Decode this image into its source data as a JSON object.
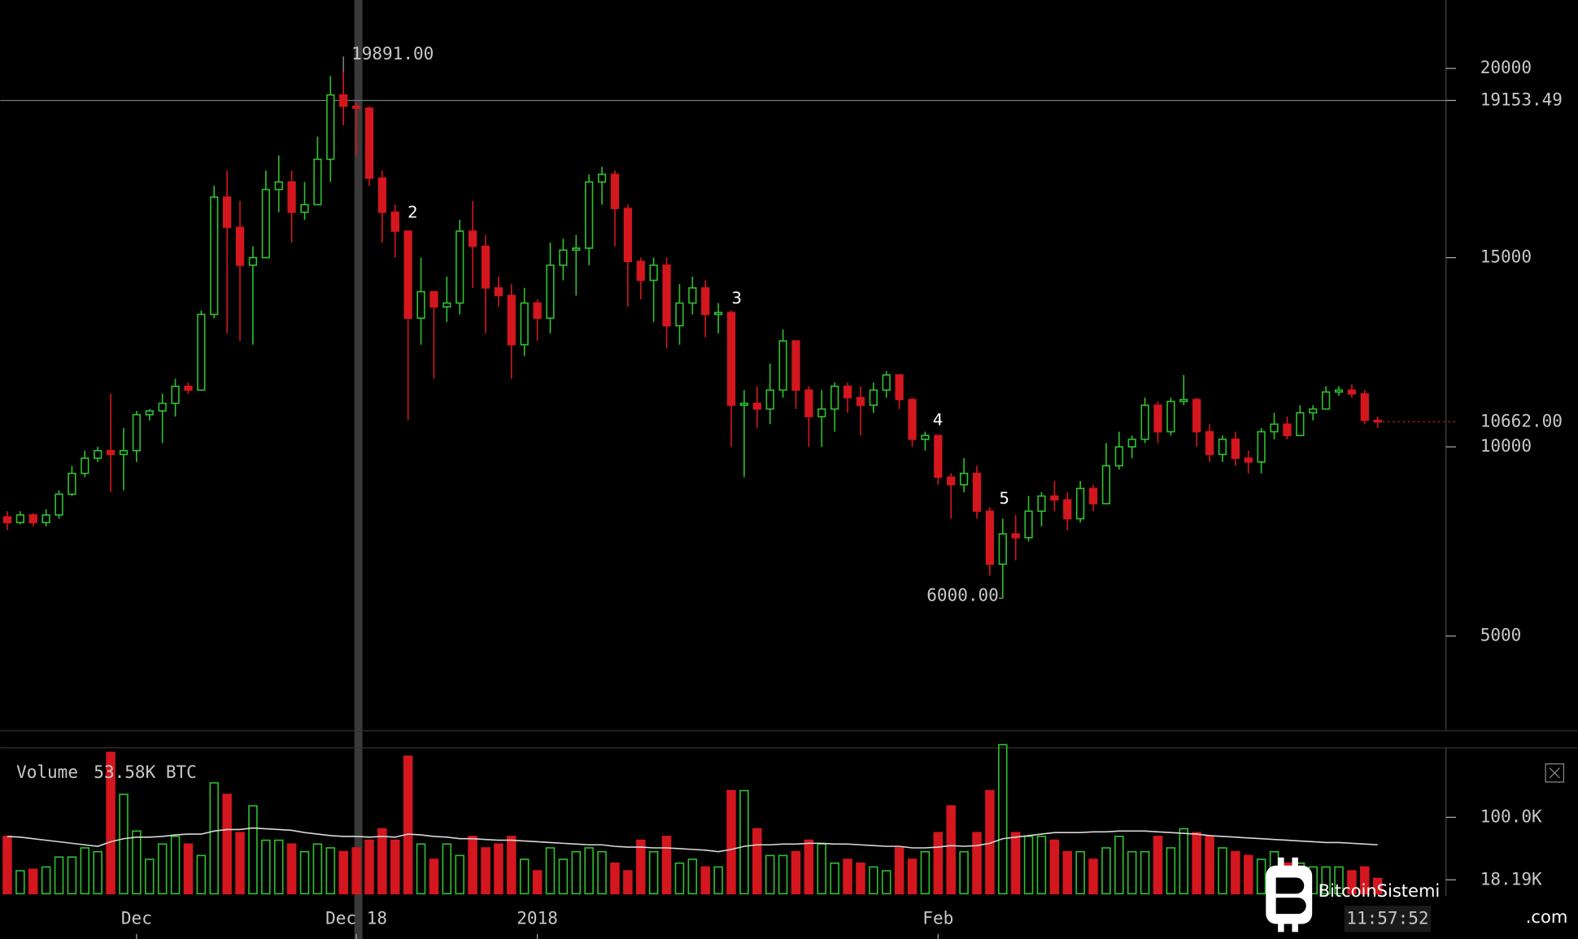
{
  "chart_data": {
    "type": "candlestick",
    "up_color": "#2fc02f",
    "down_color": "#d4161e",
    "categories": [
      null,
      null,
      null,
      null,
      null,
      null,
      null,
      null,
      null,
      null,
      "Dec",
      null,
      null,
      null,
      null,
      null,
      null,
      null,
      null,
      null,
      null,
      null,
      null,
      null,
      null,
      null,
      null,
      "Dec 18",
      null,
      null,
      null,
      null,
      null,
      null,
      null,
      null,
      null,
      null,
      null,
      null,
      null,
      "2018",
      null,
      null,
      null,
      null,
      null,
      null,
      null,
      null,
      null,
      null,
      null,
      null,
      null,
      null,
      null,
      null,
      null,
      null,
      null,
      null,
      null,
      null,
      null,
      null,
      null,
      null,
      null,
      null,
      null,
      null,
      "Feb",
      null,
      null,
      null,
      null,
      null,
      null,
      null,
      null,
      null,
      null,
      null,
      null,
      null,
      null,
      null,
      null,
      null,
      null,
      null,
      null,
      null,
      null,
      null,
      null,
      null,
      null,
      null,
      null,
      null,
      null,
      null,
      null,
      null,
      null
    ],
    "open": [
      8150,
      8000,
      8200,
      8000,
      8200,
      8750,
      9300,
      9700,
      9900,
      9800,
      9900,
      10850,
      10950,
      11150,
      11600,
      11500,
      13500,
      16600,
      15800,
      14800,
      15000,
      16800,
      17000,
      16200,
      16400,
      17600,
      19300,
      19000,
      18950,
      17100,
      16200,
      15700,
      13400,
      14100,
      13700,
      13800,
      15700,
      15300,
      14200,
      14000,
      12700,
      13800,
      13400,
      14800,
      15200,
      15250,
      17000,
      17200,
      16300,
      14900,
      14400,
      14800,
      13200,
      13800,
      14200,
      13500,
      13550,
      11100,
      11150,
      11000,
      11500,
      12800,
      11500,
      10800,
      11000,
      11600,
      11300,
      11100,
      11500,
      11900,
      11250,
      10200,
      10300,
      9200,
      9000,
      9300,
      8300,
      6900,
      7700,
      7600,
      8300,
      8700,
      8600,
      8100,
      8900,
      8500,
      9500,
      10000,
      10200,
      11100,
      10400,
      11200,
      11250,
      10400,
      9800,
      10200,
      9700,
      9600,
      10400,
      10600,
      10300,
      10900,
      11000,
      11450,
      11500,
      11400,
      10700
    ],
    "high": [
      8300,
      8300,
      8250,
      8350,
      8850,
      9500,
      9900,
      10000,
      11400,
      10500,
      10950,
      11000,
      11400,
      11800,
      11700,
      13600,
      16900,
      17300,
      16500,
      15300,
      17300,
      17700,
      17300,
      17000,
      18200,
      19800,
      19891,
      19100,
      19000,
      17300,
      16400,
      15700,
      15000,
      14100,
      14500,
      16000,
      16500,
      15600,
      14500,
      14300,
      14200,
      13900,
      15400,
      15500,
      15600,
      17200,
      17400,
      17300,
      16400,
      15000,
      15000,
      15000,
      14300,
      14500,
      14400,
      13800,
      13600,
      11500,
      11600,
      12200,
      13100,
      12800,
      11600,
      11500,
      11700,
      11700,
      11600,
      11700,
      12000,
      11900,
      11300,
      10400,
      10300,
      9300,
      9700,
      9500,
      8400,
      8100,
      8200,
      8700,
      8800,
      9100,
      8800,
      9100,
      9000,
      10100,
      10400,
      10300,
      11300,
      11200,
      11300,
      11900,
      11300,
      10600,
      10300,
      10400,
      9900,
      10500,
      10900,
      10800,
      11100,
      11100,
      11600,
      11600,
      11650,
      11500,
      10800
    ],
    "low": [
      7800,
      7950,
      7900,
      7900,
      8100,
      8700,
      9200,
      9600,
      8800,
      8850,
      9600,
      10700,
      10100,
      10800,
      11400,
      11500,
      13400,
      13000,
      12800,
      12700,
      15000,
      16200,
      15400,
      16000,
      16400,
      17000,
      18500,
      17700,
      16900,
      15400,
      15000,
      10700,
      12700,
      11800,
      13300,
      13500,
      14200,
      13000,
      13700,
      11800,
      12400,
      12800,
      13000,
      14400,
      14000,
      14800,
      16400,
      15300,
      13700,
      13900,
      13300,
      12600,
      12700,
      13500,
      12900,
      13000,
      10000,
      9200,
      10500,
      10600,
      11300,
      11000,
      10000,
      10000,
      10400,
      10900,
      10300,
      10900,
      11300,
      11000,
      10000,
      9900,
      9000,
      8100,
      8800,
      8100,
      6600,
      6000,
      7000,
      7500,
      7900,
      8300,
      7800,
      8000,
      8300,
      8500,
      9400,
      9700,
      10100,
      10100,
      10300,
      11100,
      10000,
      9600,
      9600,
      9500,
      9300,
      9300,
      10200,
      10200,
      10300,
      10700,
      11000,
      11350,
      11300,
      10600,
      10500
    ],
    "close": [
      8000,
      8200,
      8000,
      8200,
      8750,
      9300,
      9700,
      9900,
      9800,
      9900,
      10850,
      10950,
      11150,
      11600,
      11500,
      13500,
      16600,
      15800,
      14800,
      15000,
      16800,
      17000,
      16200,
      16400,
      17600,
      19300,
      19000,
      18950,
      17100,
      16200,
      15700,
      13400,
      14100,
      13700,
      13800,
      15700,
      15300,
      14200,
      14000,
      12700,
      13800,
      13400,
      14800,
      15200,
      15250,
      17000,
      17200,
      16300,
      14900,
      14400,
      14800,
      13200,
      13800,
      14200,
      13500,
      13550,
      11100,
      11150,
      11000,
      11500,
      12800,
      11500,
      10800,
      11000,
      11600,
      11300,
      11100,
      11500,
      11900,
      11250,
      10200,
      10300,
      9200,
      9000,
      9300,
      8300,
      6900,
      7700,
      7600,
      8300,
      8700,
      8600,
      8100,
      8900,
      8500,
      9500,
      10000,
      10200,
      11100,
      10400,
      11200,
      11250,
      10400,
      9800,
      10200,
      9700,
      9600,
      10400,
      10600,
      10300,
      10900,
      11000,
      11450,
      11500,
      11400,
      10700,
      10662
    ],
    "ylim": [
      2527,
      21808
    ],
    "yticks": [
      5000,
      10000,
      15000,
      20000
    ],
    "crosshair": {
      "value": 19153.49,
      "label": "19153.49"
    },
    "last_price": {
      "value": 10662,
      "label": "10662.00"
    },
    "annotations": [
      {
        "value": 19891,
        "label": "19891.00"
      },
      {
        "value": 6000,
        "label": "6000.00"
      }
    ],
    "wave_labels": [
      "2",
      "3",
      "4",
      "5"
    ],
    "volume": {
      "name": "Volume",
      "readout": "53.58K BTC",
      "values": [
        75,
        30,
        32,
        35,
        48,
        48,
        60,
        55,
        185,
        130,
        82,
        45,
        65,
        75,
        65,
        50,
        145,
        130,
        80,
        115,
        70,
        70,
        65,
        55,
        65,
        60,
        55,
        60,
        70,
        85,
        70,
        180,
        65,
        45,
        65,
        50,
        75,
        60,
        65,
        75,
        45,
        30,
        60,
        45,
        55,
        60,
        55,
        40,
        30,
        70,
        55,
        75,
        40,
        45,
        35,
        35,
        135,
        135,
        85,
        50,
        50,
        55,
        70,
        65,
        40,
        45,
        40,
        35,
        30,
        60,
        45,
        55,
        80,
        115,
        55,
        80,
        135,
        195,
        80,
        75,
        75,
        70,
        55,
        55,
        45,
        60,
        75,
        55,
        55,
        75,
        60,
        85,
        80,
        75,
        60,
        55,
        50,
        45,
        55,
        40,
        40,
        35,
        35,
        35,
        30,
        35,
        20
      ],
      "ma": [
        75,
        74,
        72,
        70,
        68,
        66,
        64,
        62,
        68,
        72,
        74,
        74,
        75,
        77,
        78,
        78,
        82,
        84,
        84,
        86,
        85,
        84,
        83,
        80,
        78,
        76,
        75,
        75,
        74,
        75,
        74,
        78,
        77,
        75,
        74,
        72,
        72,
        71,
        70,
        70,
        69,
        68,
        67,
        66,
        65,
        64,
        64,
        62,
        61,
        61,
        60,
        60,
        59,
        58,
        57,
        55,
        58,
        62,
        64,
        64,
        65,
        65,
        66,
        66,
        65,
        65,
        64,
        63,
        62,
        62,
        60,
        60,
        61,
        63,
        62,
        63,
        66,
        72,
        74,
        76,
        78,
        80,
        80,
        80,
        81,
        81,
        82,
        82,
        82,
        81,
        80,
        79,
        78,
        76,
        75,
        74,
        73,
        72,
        71,
        70,
        69,
        68,
        67,
        67,
        66,
        65,
        64
      ],
      "ma_color": "#d8d8d8",
      "ylim": [
        0,
        191
      ],
      "yticks": [
        {
          "value": 100,
          "label": "100.0K"
        },
        {
          "value": 18.19,
          "label": "18.19K"
        }
      ]
    },
    "time_label": "11:57:52",
    "watermark": {
      "name": "BitcoinSistemi",
      "suffix": ".com"
    }
  }
}
